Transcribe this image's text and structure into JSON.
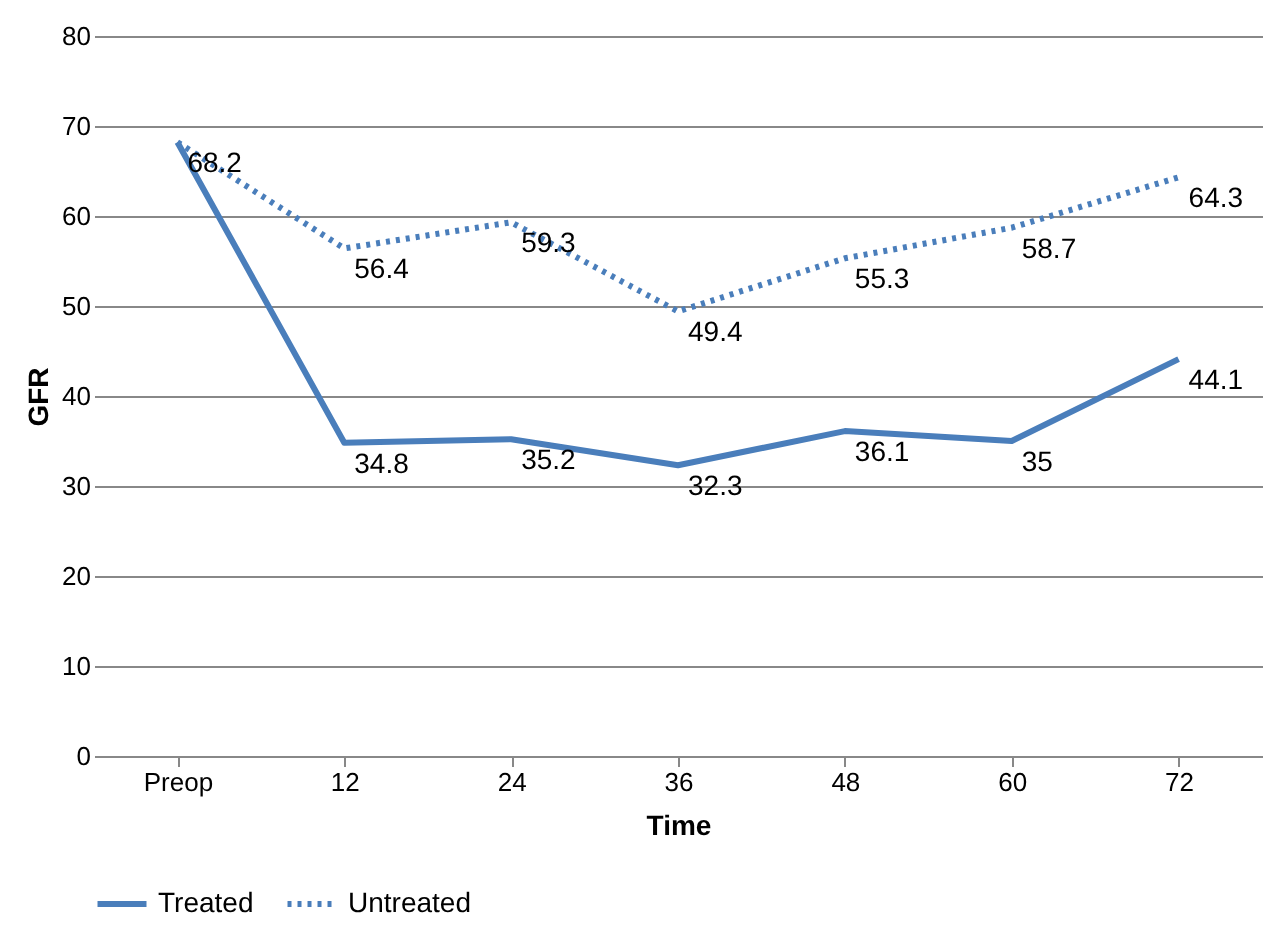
{
  "chart_data": {
    "type": "line",
    "xlabel": "Time",
    "ylabel": "GFR",
    "categories": [
      "Preop",
      "12",
      "24",
      "36",
      "48",
      "60",
      "72"
    ],
    "series": [
      {
        "name": "Treated",
        "color": "#4a7ebb",
        "line_style": "solid",
        "values": [
          68.2,
          34.8,
          35.2,
          32.3,
          36.1,
          35,
          44.1
        ],
        "value_labels": [
          "68.2",
          "34.8",
          "35.2",
          "32.3",
          "36.1",
          "35",
          "44.1"
        ]
      },
      {
        "name": "Untreated",
        "color": "#4a7ebb",
        "line_style": "dotted",
        "values": [
          68.2,
          56.4,
          59.3,
          49.4,
          55.3,
          58.7,
          64.3
        ],
        "value_labels": [
          null,
          "56.4",
          "59.3",
          "49.4",
          "55.3",
          "58.7",
          "64.3"
        ]
      }
    ],
    "ylim": [
      0,
      80
    ],
    "yticks": [
      0,
      10,
      20,
      30,
      40,
      50,
      60,
      70,
      80
    ],
    "grid": "y",
    "legend": "bottom",
    "marker": "none"
  }
}
